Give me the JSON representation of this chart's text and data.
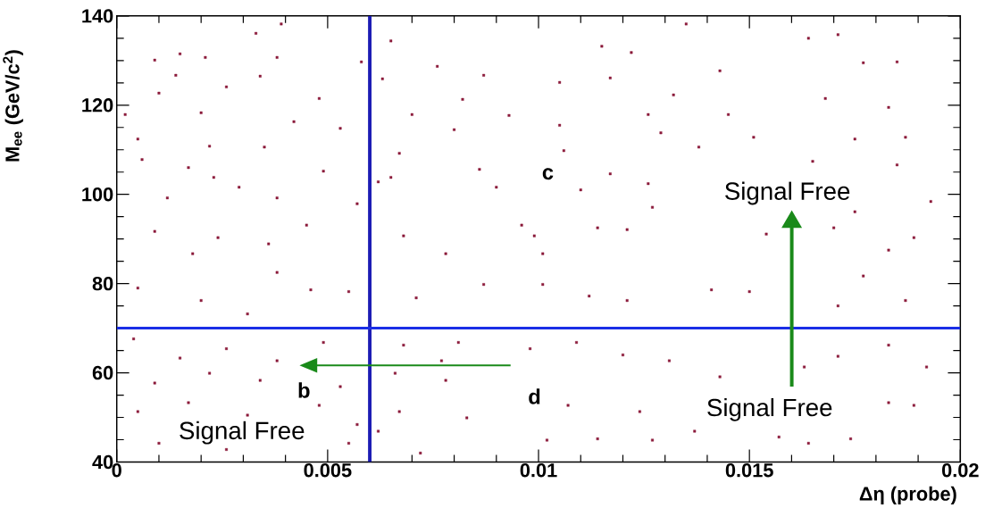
{
  "chart_data": {
    "type": "scatter",
    "xlabel": "Δη  (probe)",
    "ylabel": "M$_{ee}$  (GeV/c$^{2}$)",
    "xlim": [
      0,
      0.02
    ],
    "ylim": [
      40,
      140
    ],
    "xticks": [
      0,
      0.005,
      0.01,
      0.015,
      0.02
    ],
    "yticks": [
      40,
      60,
      80,
      100,
      120,
      140
    ],
    "marker": "square",
    "grid": false,
    "series": [
      {
        "color": "#8b1a3a",
        "x": [
          0.0039,
          0.0033,
          0.0009,
          0.0021,
          0.0015,
          0.0038,
          0.0014,
          0.0034,
          0.0058,
          0.0065,
          0.0063,
          0.0076,
          0.0087,
          0.001,
          0.0026,
          0.0048,
          0.0082,
          0.0002,
          0.002,
          0.0042,
          0.0053,
          0.007,
          0.008,
          0.0005,
          0.0022,
          0.0035,
          0.0067,
          0.0006,
          0.0017,
          0.0049,
          0.0086,
          0.0023,
          0.0029,
          0.0065,
          0.0062,
          0.0012,
          0.0038,
          0.0057,
          0.009,
          0.0009,
          0.0024,
          0.0045,
          0.0068,
          0.0078,
          0.0036,
          0.0018,
          0.0135,
          0.0164,
          0.0171,
          0.0115,
          0.0122,
          0.0177,
          0.0185,
          0.0117,
          0.0143,
          0.0105,
          0.0132,
          0.0168,
          0.0183,
          0.0093,
          0.0126,
          0.0145,
          0.0105,
          0.0129,
          0.0151,
          0.0175,
          0.0187,
          0.0138,
          0.0106,
          0.0165,
          0.0185,
          0.0117,
          0.0126,
          0.011,
          0.0193,
          0.0127,
          0.0175,
          0.0096,
          0.0114,
          0.0121,
          0.0154,
          0.017,
          0.0189,
          0.0183,
          0.0099,
          0.0101,
          0.0005,
          0.002,
          0.0038,
          0.0055,
          0.0031,
          0.0046,
          0.0004,
          0.0015,
          0.0026,
          0.0038,
          0.0049,
          0.0009,
          0.0022,
          0.0034,
          0.0053,
          0.0005,
          0.0017,
          0.0031,
          0.0048,
          0.0057,
          0.001,
          0.0026,
          0.0055,
          0.0072,
          0.0066,
          0.0078,
          0.0068,
          0.0081,
          0.0071,
          0.0087,
          0.0067,
          0.0083,
          0.0062,
          0.0077,
          0.0101,
          0.0112,
          0.0121,
          0.0141,
          0.015,
          0.0177,
          0.0187,
          0.0171,
          0.0098,
          0.0109,
          0.012,
          0.0131,
          0.0143,
          0.0163,
          0.0171,
          0.0183,
          0.0192,
          0.0107,
          0.0114,
          0.0124,
          0.0127,
          0.0137,
          0.0157,
          0.0174,
          0.0189,
          0.0183,
          0.0164,
          0.0102
        ],
        "values": [
          138.2,
          136.1,
          130.1,
          130.7,
          131.5,
          130.7,
          126.7,
          126.5,
          129.7,
          134.4,
          125.9,
          128.7,
          126.7,
          122.7,
          124.1,
          121.5,
          121.3,
          117.9,
          118.3,
          116.3,
          114.8,
          117.9,
          114.5,
          112.4,
          110.8,
          110.6,
          109.2,
          107.8,
          106,
          105.2,
          105.6,
          103.8,
          101.6,
          103.8,
          102.8,
          99.2,
          99.2,
          97.9,
          101.6,
          91.7,
          90.3,
          93.1,
          90.7,
          86.7,
          88.9,
          86.7,
          138.2,
          135,
          135.8,
          133.2,
          131.8,
          129.5,
          129.7,
          126.1,
          127.7,
          125.1,
          122.3,
          121.5,
          119.5,
          117.7,
          117.9,
          117.9,
          115.5,
          113.8,
          112.8,
          112.4,
          112.8,
          110.6,
          109.8,
          107.4,
          106.6,
          104.6,
          102.4,
          101,
          98.4,
          97.1,
          96.1,
          93.1,
          92.5,
          92.1,
          91.1,
          92.5,
          90.3,
          87.5,
          90.7,
          86.7,
          79,
          76.2,
          82.5,
          78.2,
          73.2,
          78.6,
          67.6,
          63.3,
          65.4,
          62.7,
          66.8,
          57.7,
          59.9,
          58.3,
          56.9,
          51.3,
          53.3,
          50.5,
          52.7,
          48.4,
          44.2,
          42.8,
          44.2,
          42,
          59.9,
          58.3,
          66.2,
          66.8,
          76.8,
          79.8,
          51.3,
          49.9,
          46.9,
          62.7,
          79.8,
          77.2,
          76.2,
          78.6,
          78.2,
          81.7,
          76.2,
          75,
          65.4,
          66.8,
          64,
          62.7,
          59.1,
          61.3,
          63.7,
          66.2,
          61.3,
          52.7,
          45.2,
          51.3,
          44.9,
          46.9,
          45.6,
          45.2,
          52.7,
          53.3,
          44.2,
          44.9
        ]
      }
    ],
    "ref_lines": [
      {
        "axis": "x",
        "value": 0.006,
        "color": "#1c1cb4"
      },
      {
        "axis": "y",
        "value": 70,
        "color": "#1a2ee6"
      }
    ],
    "annotations": [
      "c",
      "b",
      "d",
      "Signal Free",
      "Signal Free",
      "Signal Free"
    ]
  }
}
